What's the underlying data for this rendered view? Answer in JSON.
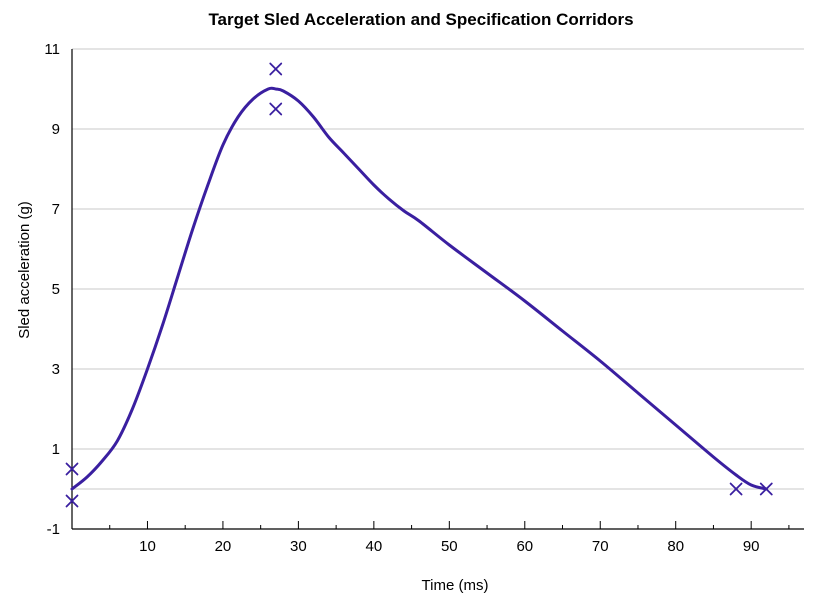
{
  "chart_data": {
    "type": "line",
    "title": "Target Sled Acceleration and Specification Corridors",
    "xlabel": "Time (ms)",
    "ylabel": "Sled acceleration (g)",
    "xlim": [
      0,
      97
    ],
    "ylim": [
      -1,
      11
    ],
    "x_ticks": [
      10,
      20,
      30,
      40,
      50,
      60,
      70,
      80,
      90
    ],
    "y_ticks": [
      -1,
      1,
      3,
      5,
      7,
      9,
      11
    ],
    "grid": "horizontal",
    "colors": {
      "curve": "#3a1fa0",
      "markers": "#3a1fa0"
    },
    "series": [
      {
        "values": [
          [
            0,
            0
          ],
          [
            2,
            0.3
          ],
          [
            4,
            0.7
          ],
          [
            6,
            1.2
          ],
          [
            8,
            2.0
          ],
          [
            10,
            3.0
          ],
          [
            12,
            4.1
          ],
          [
            14,
            5.3
          ],
          [
            16,
            6.5
          ],
          [
            18,
            7.6
          ],
          [
            20,
            8.6
          ],
          [
            22,
            9.3
          ],
          [
            24,
            9.75
          ],
          [
            26,
            10.0
          ],
          [
            27,
            10.0
          ],
          [
            28,
            9.95
          ],
          [
            30,
            9.7
          ],
          [
            32,
            9.3
          ],
          [
            34,
            8.8
          ],
          [
            36,
            8.4
          ],
          [
            38,
            8.0
          ],
          [
            40,
            7.6
          ],
          [
            42,
            7.25
          ],
          [
            44,
            6.95
          ],
          [
            46,
            6.7
          ],
          [
            50,
            6.1
          ],
          [
            55,
            5.4
          ],
          [
            60,
            4.7
          ],
          [
            65,
            3.95
          ],
          [
            70,
            3.2
          ],
          [
            75,
            2.4
          ],
          [
            80,
            1.6
          ],
          [
            85,
            0.8
          ],
          [
            88,
            0.35
          ],
          [
            90,
            0.1
          ],
          [
            92,
            0
          ]
        ]
      }
    ],
    "corridor_points": [
      {
        "x": 0,
        "y": 0.5
      },
      {
        "x": 0,
        "y": -0.3
      },
      {
        "x": 27,
        "y": 10.5
      },
      {
        "x": 27,
        "y": 9.5
      },
      {
        "x": 88,
        "y": 0
      },
      {
        "x": 92,
        "y": 0
      }
    ]
  }
}
